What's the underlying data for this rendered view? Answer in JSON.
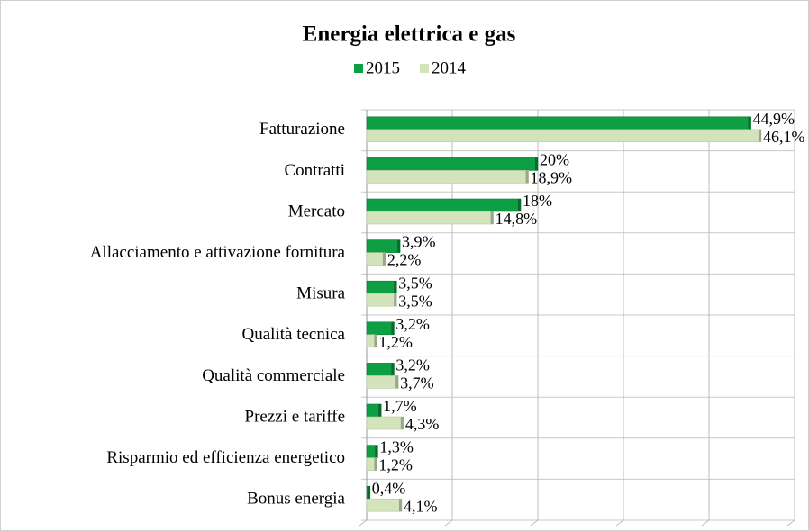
{
  "chart_data": {
    "type": "hbar",
    "title": "Energia elettrica e gas",
    "categories": [
      "Fatturazione",
      "Contratti",
      "Mercato",
      "Allacciamento e attivazione fornitura",
      "Misura",
      "Qualità tecnica",
      "Qualità commerciale",
      "Prezzi e tariffe",
      "Risparmio ed efficienza energetico",
      "Bonus energia"
    ],
    "series": [
      {
        "name": "2015",
        "color": "#0e9f45",
        "values": [
          44.9,
          20,
          18,
          3.9,
          3.5,
          3.2,
          3.2,
          1.7,
          1.3,
          0.4
        ],
        "value_labels": [
          "44,9%",
          "20%",
          "18%",
          "3,9%",
          "3,5%",
          "3,2%",
          "3,2%",
          "1,7%",
          "1,3%",
          "0,4%"
        ]
      },
      {
        "name": "2014",
        "color": "#d3e3bb",
        "values": [
          46.1,
          18.9,
          14.8,
          2.2,
          3.5,
          1.2,
          3.7,
          4.3,
          1.2,
          4.1
        ],
        "value_labels": [
          "46,1%",
          "18,9%",
          "14,8%",
          "2,2%",
          "3,5%",
          "1,2%",
          "3,7%",
          "4,3%",
          "1,2%",
          "4,1%"
        ]
      }
    ],
    "xlim": [
      0,
      50
    ],
    "xticks": [
      0,
      10,
      20,
      30,
      40,
      50
    ],
    "grid": true,
    "legend": "top"
  }
}
